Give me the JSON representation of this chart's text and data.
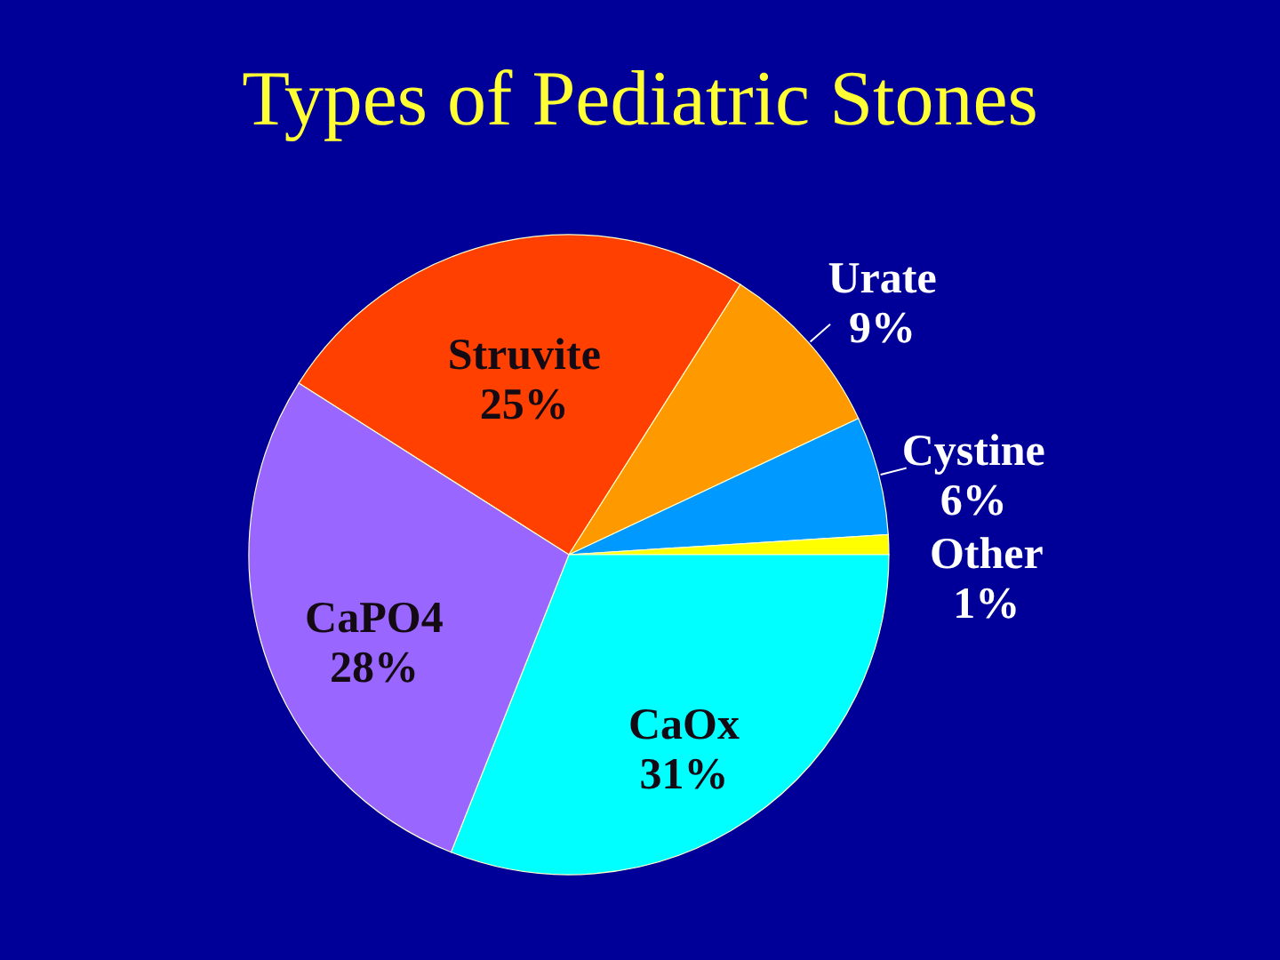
{
  "chart_data": {
    "type": "pie",
    "title": "Types of Pediatric Stones",
    "categories": [
      "Struvite",
      "Urate",
      "Cystine",
      "Other",
      "CaOx",
      "CaPO4"
    ],
    "values": [
      25,
      9,
      6,
      1,
      31,
      28
    ],
    "colors": [
      "#ff4000",
      "#ff9900",
      "#0099ff",
      "#ffff00",
      "#00ffff",
      "#9966ff"
    ],
    "value_labels": [
      "25%",
      "9%",
      "6%",
      "1%",
      "31%",
      "28%"
    ]
  }
}
